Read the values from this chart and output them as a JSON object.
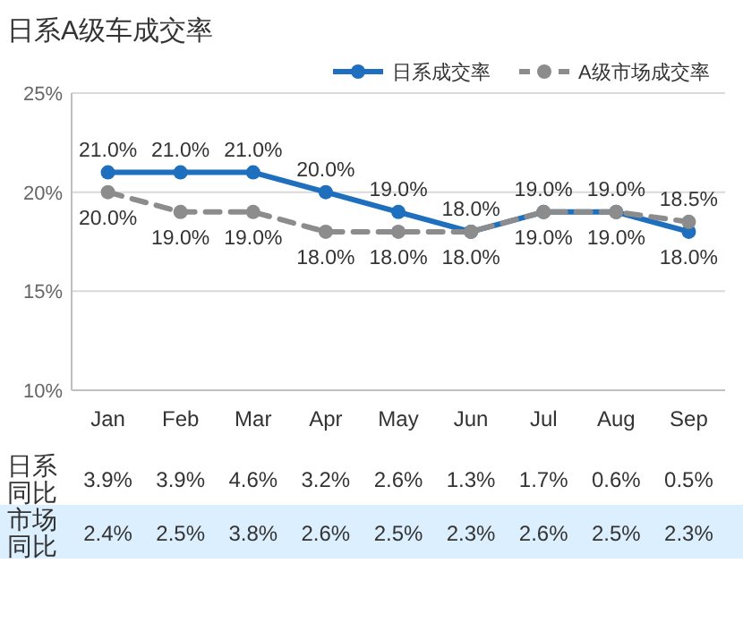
{
  "chart_data": [
    {
      "type": "line",
      "title": "日系A级车成交率",
      "categories": [
        "Jan",
        "Feb",
        "Mar",
        "Apr",
        "May",
        "Jun",
        "Jul",
        "Aug",
        "Sep"
      ],
      "ylim": [
        10,
        25
      ],
      "yticks": [
        {
          "value": 10,
          "label": "10%"
        },
        {
          "value": 15,
          "label": "15%"
        },
        {
          "value": 20,
          "label": "20%"
        },
        {
          "value": 25,
          "label": "25%"
        }
      ],
      "grid": "y",
      "legend": "top right",
      "marker": "circle",
      "series": [
        {
          "name": "日系成交率",
          "color": "#1f6fbf",
          "line_style": "solid",
          "values": [
            21.0,
            21.0,
            21.0,
            20.0,
            19.0,
            18.0,
            19.0,
            19.0,
            18.0
          ],
          "value_labels": [
            "21.0%",
            "21.0%",
            "21.0%",
            "20.0%",
            "19.0%",
            "18.0%",
            "19.0%",
            "19.0%",
            "18.0%"
          ]
        },
        {
          "name": "A级市场成交率",
          "color": "#8c8c8c",
          "line_style": "dashed",
          "values": [
            20.0,
            19.0,
            19.0,
            18.0,
            18.0,
            18.0,
            19.0,
            19.0,
            18.5
          ],
          "value_labels": [
            "20.0%",
            "19.0%",
            "19.0%",
            "18.0%",
            "18.0%",
            "18.0%",
            "19.0%",
            "19.0%",
            "18.5%"
          ]
        }
      ]
    },
    {
      "type": "other",
      "annotations": [
        "日系同比",
        "3.9%",
        "3.9%",
        "4.6%",
        "3.2%",
        "2.6%",
        "1.3%",
        "1.7%",
        "0.6%",
        "0.5%",
        "市场同比",
        "2.4%",
        "2.5%",
        "3.8%",
        "2.6%",
        "2.5%",
        "2.3%",
        "2.6%",
        "2.5%",
        "2.3%"
      ]
    }
  ]
}
